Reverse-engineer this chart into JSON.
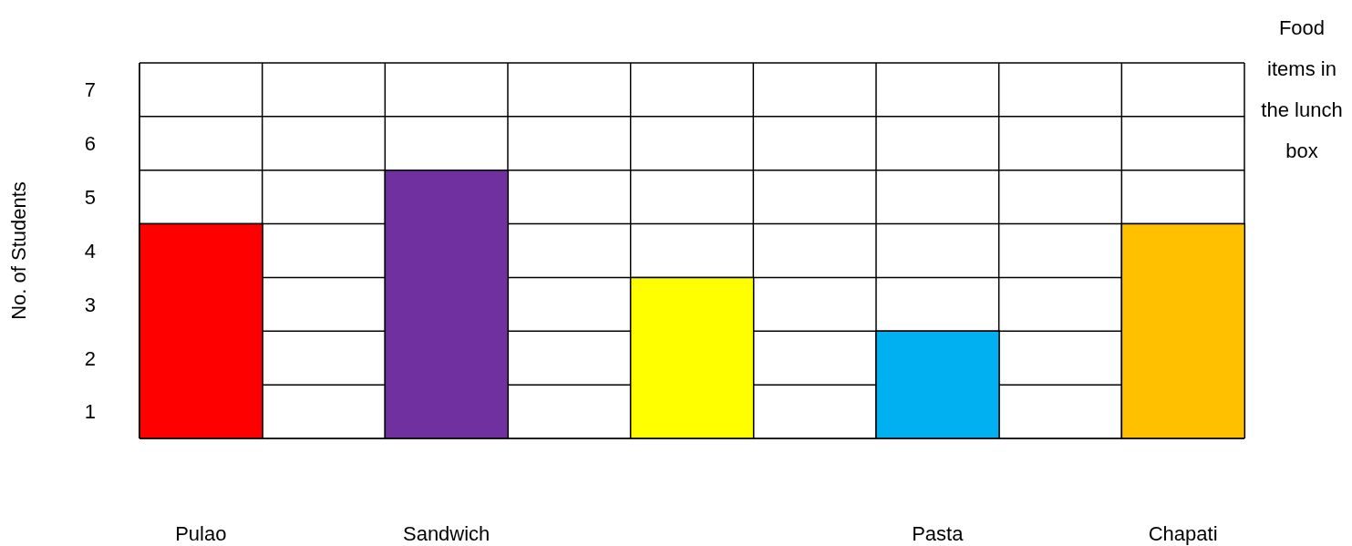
{
  "chart_data": {
    "type": "bar",
    "xlabel": "Food items in the lunch box",
    "ylabel": "No. of Students",
    "categories": [
      "Pulao",
      null,
      "Sandwich",
      null,
      null,
      null,
      "Pasta",
      null,
      "Chapati"
    ],
    "values": [
      4,
      null,
      5,
      null,
      3,
      null,
      2,
      null,
      4
    ],
    "colors": [
      "#ff0000",
      null,
      "#7030a0",
      null,
      "#ffff00",
      null,
      "#00b0f0",
      null,
      "#ffc000"
    ],
    "ylim": [
      0,
      7
    ],
    "yticks": [
      {
        "value": 0.5,
        "label": "1"
      },
      {
        "value": 1.5,
        "label": "2"
      },
      {
        "value": 2.5,
        "label": "3"
      },
      {
        "value": 3.5,
        "label": "4"
      },
      {
        "value": 4.5,
        "label": "5"
      },
      {
        "value": 5.5,
        "label": "6"
      },
      {
        "value": 6.5,
        "label": "7"
      }
    ],
    "grid": true
  }
}
